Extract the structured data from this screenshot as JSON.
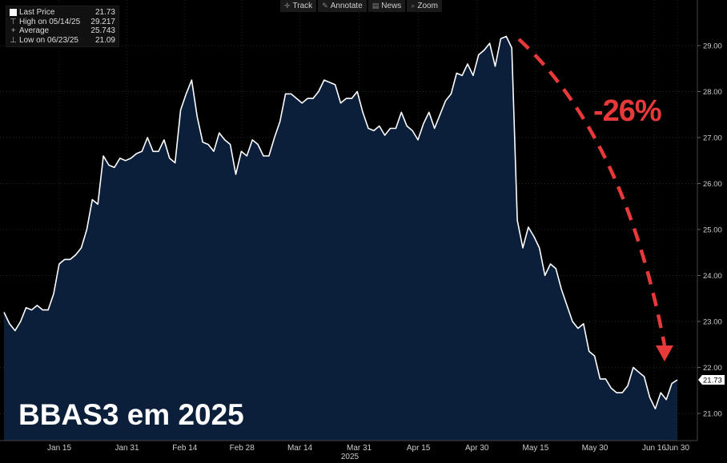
{
  "toolbar": {
    "track": "Track",
    "annotate": "Annotate",
    "news": "News",
    "zoom": "Zoom"
  },
  "legend": {
    "last_label": "Last Price",
    "last_value": "21.73",
    "high_label": "High on 05/14/25",
    "high_value": "29.217",
    "avg_label": "Average",
    "avg_value": "25.743",
    "low_label": "Low on 06/23/25",
    "low_value": "21.09"
  },
  "annotations": {
    "change": "-26%",
    "caption": "BBAS3 em 2025"
  },
  "colors": {
    "line": "#ffffff",
    "fill": "#0c1f3a",
    "arrow": "#e8393a",
    "background": "#000000"
  },
  "chart_data": {
    "type": "area",
    "x_ticks": [
      "Jan 15",
      "Jan 31",
      "Feb 14",
      "Feb 28",
      "Mar 14",
      "Mar 31",
      "Apr 15",
      "Apr 30",
      "May 15",
      "May 30",
      "Jun 16",
      "Jun 30"
    ],
    "x_year_label": "2025",
    "y_ticks": [
      "21.00",
      "22.00",
      "23.00",
      "24.00",
      "25.00",
      "26.00",
      "27.00",
      "28.00",
      "29.00"
    ],
    "ylim": [
      20.3,
      30.0
    ],
    "last_value_label": "21.73",
    "series": [
      {
        "values": [
          23.2,
          22.95,
          22.8,
          23.0,
          23.3,
          23.25,
          23.35,
          23.25,
          23.25,
          23.6,
          24.25,
          24.35,
          24.35,
          24.45,
          24.6,
          25.0,
          25.65,
          25.55,
          26.6,
          26.4,
          26.35,
          26.55,
          26.5,
          26.55,
          26.65,
          26.7,
          27.0,
          26.7,
          26.7,
          26.95,
          26.55,
          26.45,
          27.6,
          27.95,
          28.25,
          27.45,
          26.9,
          26.85,
          26.7,
          27.1,
          26.95,
          26.85,
          26.2,
          26.7,
          26.6,
          26.95,
          26.85,
          26.6,
          26.6,
          27.0,
          27.35,
          27.95,
          27.95,
          27.85,
          27.75,
          27.85,
          27.85,
          28.0,
          28.25,
          28.2,
          28.15,
          27.75,
          27.85,
          27.85,
          28.0,
          27.55,
          27.2,
          27.15,
          27.25,
          27.05,
          27.2,
          27.2,
          27.55,
          27.25,
          27.15,
          26.95,
          27.3,
          27.55,
          27.2,
          27.5,
          27.8,
          27.95,
          28.4,
          28.35,
          28.6,
          28.35,
          28.8,
          28.9,
          29.05,
          28.55,
          29.15,
          29.2,
          28.95,
          25.2,
          24.6,
          25.05,
          24.85,
          24.6,
          24.0,
          24.25,
          24.15,
          23.7,
          23.35,
          23.0,
          22.85,
          22.95,
          22.35,
          22.25,
          21.75,
          21.75,
          21.55,
          21.45,
          21.45,
          21.6,
          22.0,
          21.9,
          21.8,
          21.35,
          21.1,
          21.45,
          21.3,
          21.65,
          21.73
        ]
      }
    ],
    "x_tick_index": [
      12,
      27,
      40,
      53,
      66,
      80,
      94,
      108,
      121,
      135,
      149,
      162
    ],
    "n_slots": 163
  }
}
